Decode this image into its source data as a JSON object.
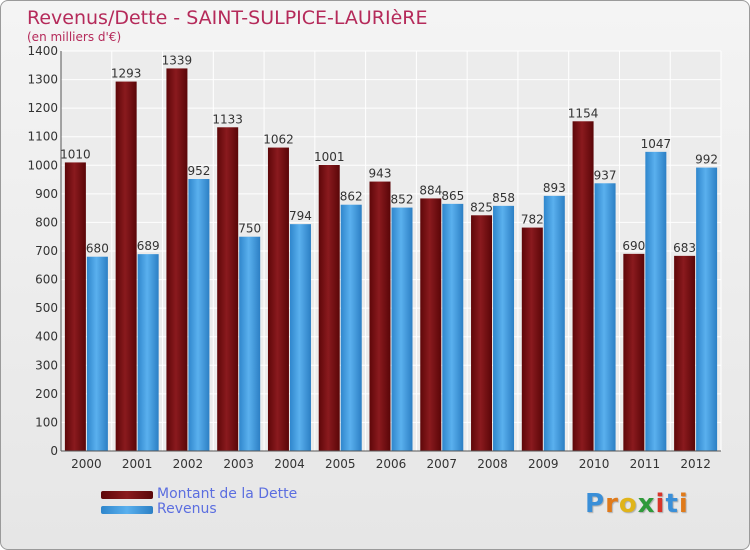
{
  "header": {
    "title": "Revenus/Dette - SAINT-SULPICE-LAURIèRE",
    "subtitle": "(en milliers d'€)"
  },
  "chart_data": {
    "type": "bar",
    "title": "Revenus/Dette - SAINT-SULPICE-LAURIèRE",
    "subtitle": "(en milliers d'€)",
    "categories": [
      "2000",
      "2001",
      "2002",
      "2003",
      "2004",
      "2005",
      "2006",
      "2007",
      "2008",
      "2009",
      "2010",
      "2011",
      "2012"
    ],
    "series": [
      {
        "name": "Montant de la Dette",
        "color": "#7a0f13",
        "values": [
          1010,
          1293,
          1339,
          1133,
          1062,
          1001,
          943,
          884,
          825,
          782,
          1154,
          690,
          683
        ]
      },
      {
        "name": "Revenus",
        "color": "#3f9be0",
        "values": [
          680,
          689,
          952,
          750,
          794,
          862,
          852,
          865,
          858,
          893,
          937,
          1047,
          992
        ]
      }
    ],
    "ylim": [
      0,
      1400
    ],
    "yticks": [
      0,
      100,
      200,
      300,
      400,
      500,
      600,
      700,
      800,
      900,
      1000,
      1100,
      1200,
      1300,
      1400
    ],
    "grid": true,
    "legend_position": "bottom-left"
  },
  "legend": {
    "items": [
      {
        "label": "Montant de la Dette",
        "color": "#7a0f13"
      },
      {
        "label": "Revenus",
        "color": "#3f9be0"
      }
    ]
  },
  "logo": {
    "letters": [
      {
        "ch": "P",
        "color": "#3a8fd8"
      },
      {
        "ch": "r",
        "color": "#e07a1a"
      },
      {
        "ch": "o",
        "color": "#e0b41a"
      },
      {
        "ch": "x",
        "color": "#2f9a3a"
      },
      {
        "ch": "i",
        "color": "#d8342a"
      },
      {
        "ch": "t",
        "color": "#3a8fd8"
      },
      {
        "ch": "i",
        "color": "#e07a1a"
      }
    ]
  }
}
